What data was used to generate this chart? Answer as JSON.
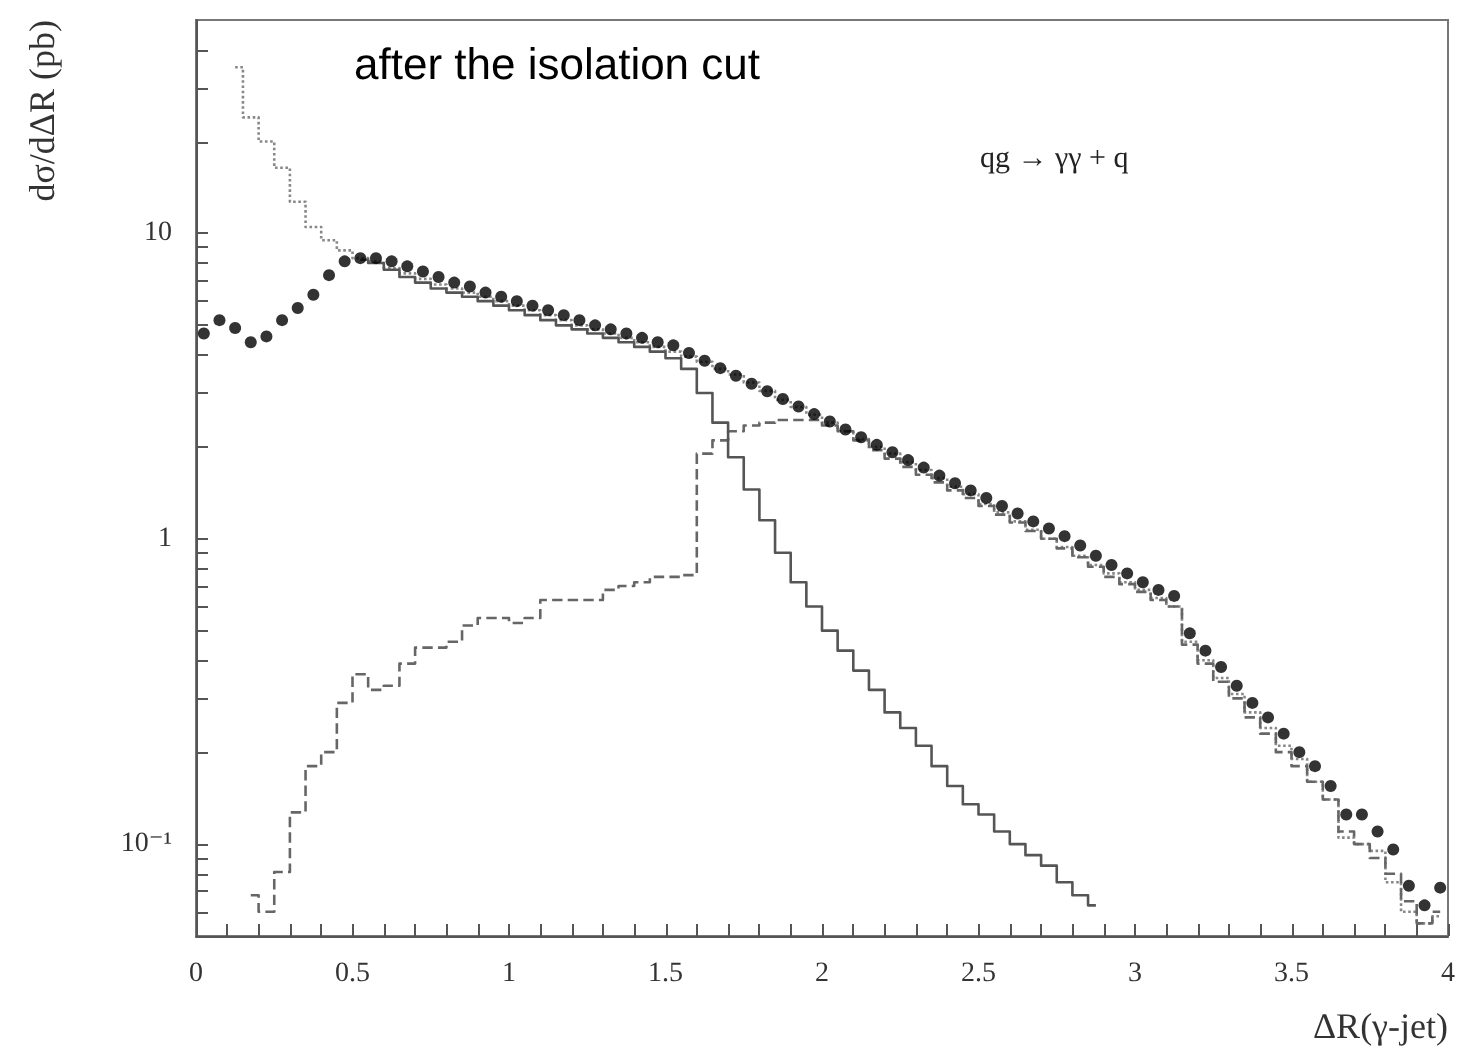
{
  "chart_data": {
    "type": "scatter",
    "title": "after the isolation cut",
    "xlabel": "ΔR(γ-jet)",
    "ylabel": "dσ/dΔR (pb)",
    "annotations": [
      "qg → γγ + q"
    ],
    "log": "y",
    "grid": false,
    "xlim": [
      0,
      4
    ],
    "ylim": [
      0.05,
      50
    ],
    "xticks": [
      0,
      {
        "value": 0.1,
        "label": null
      },
      {
        "value": 0.2,
        "label": null
      },
      {
        "value": 0.3,
        "label": null
      },
      {
        "value": 0.4,
        "label": null
      },
      0.5,
      {
        "value": 0.6,
        "label": null
      },
      {
        "value": 0.7,
        "label": null
      },
      {
        "value": 0.8,
        "label": null
      },
      {
        "value": 0.9,
        "label": null
      },
      1,
      {
        "value": 1.1,
        "label": null
      },
      {
        "value": 1.2,
        "label": null
      },
      {
        "value": 1.3,
        "label": null
      },
      {
        "value": 1.4,
        "label": null
      },
      1.5,
      {
        "value": 1.6,
        "label": null
      },
      {
        "value": 1.7,
        "label": null
      },
      {
        "value": 1.8,
        "label": null
      },
      {
        "value": 1.9,
        "label": null
      },
      2,
      {
        "value": 2.1,
        "label": null
      },
      {
        "value": 2.2,
        "label": null
      },
      {
        "value": 2.3,
        "label": null
      },
      {
        "value": 2.4,
        "label": null
      },
      2.5,
      {
        "value": 2.6,
        "label": null
      },
      {
        "value": 2.7,
        "label": null
      },
      {
        "value": 2.8,
        "label": null
      },
      {
        "value": 2.9,
        "label": null
      },
      3,
      {
        "value": 3.1,
        "label": null
      },
      {
        "value": 3.2,
        "label": null
      },
      {
        "value": 3.3,
        "label": null
      },
      {
        "value": 3.4,
        "label": null
      },
      3.5,
      {
        "value": 3.6,
        "label": null
      },
      {
        "value": 3.7,
        "label": null
      },
      {
        "value": 3.8,
        "label": null
      },
      {
        "value": 3.9,
        "label": null
      },
      4
    ],
    "yticks": [
      {
        "value": 0.06,
        "label": null
      },
      {
        "value": 0.07,
        "label": null
      },
      {
        "value": 0.08,
        "label": null
      },
      {
        "value": 0.09,
        "label": null
      },
      {
        "value": 0.1,
        "label": "10⁻¹"
      },
      {
        "value": 0.2,
        "label": null
      },
      {
        "value": 0.3,
        "label": null
      },
      {
        "value": 0.4,
        "label": null
      },
      {
        "value": 0.5,
        "label": null
      },
      {
        "value": 0.6,
        "label": null
      },
      {
        "value": 0.7,
        "label": null
      },
      {
        "value": 0.8,
        "label": null
      },
      {
        "value": 0.9,
        "label": null
      },
      1,
      {
        "value": 2,
        "label": null
      },
      {
        "value": 3,
        "label": null
      },
      {
        "value": 4,
        "label": null
      },
      {
        "value": 5,
        "label": null
      },
      {
        "value": 6,
        "label": null
      },
      {
        "value": 7,
        "label": null
      },
      {
        "value": 8,
        "label": null
      },
      {
        "value": 9,
        "label": null
      },
      10,
      {
        "value": 20,
        "label": null
      },
      {
        "value": 30,
        "label": null
      },
      {
        "value": 40,
        "label": null
      }
    ],
    "series": [
      {
        "type": "step",
        "color": "#888888",
        "line_style": "dotted",
        "x": [
          0.125,
          0.175,
          0.225,
          0.275,
          0.325,
          0.375,
          0.425,
          0.475,
          0.525,
          0.575,
          0.625,
          0.675,
          0.725,
          0.775,
          0.825,
          0.875,
          0.925,
          0.975,
          1.025,
          1.075,
          1.125,
          1.175,
          1.225,
          1.275,
          1.325,
          1.375,
          1.425,
          1.475,
          1.525,
          1.575,
          1.625,
          1.675,
          1.725,
          1.775,
          1.825,
          1.875,
          1.925,
          1.975,
          2.025,
          2.075,
          2.125,
          2.175,
          2.225,
          2.275,
          2.325,
          2.375,
          2.425,
          2.475,
          2.525,
          2.575,
          2.625,
          2.675,
          2.725,
          2.775,
          2.825,
          2.875,
          2.925,
          2.975,
          3.025,
          3.075,
          3.125,
          3.175,
          3.225,
          3.275,
          3.325,
          3.375,
          3.425,
          3.475,
          3.525,
          3.575,
          3.625,
          3.675,
          3.725,
          3.775,
          3.825,
          3.875,
          3.925,
          3.975
        ],
        "values": [
          35,
          24,
          20,
          16.4,
          12.7,
          10.5,
          9.5,
          8.8,
          8.3,
          8.1,
          7.7,
          7.4,
          7.1,
          6.8,
          6.6,
          6.4,
          6.2,
          6.0,
          5.8,
          5.6,
          5.4,
          5.2,
          5.0,
          4.85,
          4.7,
          4.55,
          4.4,
          4.25,
          4.1,
          3.95,
          3.8,
          3.6,
          3.45,
          3.25,
          3.05,
          2.85,
          2.7,
          2.55,
          2.4,
          2.25,
          2.12,
          2.0,
          1.9,
          1.78,
          1.68,
          1.58,
          1.48,
          1.4,
          1.3,
          1.22,
          1.14,
          1.07,
          1.0,
          0.94,
          0.88,
          0.82,
          0.77,
          0.72,
          0.68,
          0.64,
          0.6,
          0.46,
          0.4,
          0.35,
          0.31,
          0.27,
          0.24,
          0.21,
          0.19,
          0.16,
          0.14,
          0.105,
          0.1,
          0.095,
          0.075,
          0.06,
          0.055,
          0.058
        ]
      },
      {
        "type": "step",
        "color": "#666666",
        "line_style": "dashed",
        "x": [
          0.175,
          0.225,
          0.275,
          0.325,
          0.375,
          0.425,
          0.475,
          0.525,
          0.575,
          0.625,
          0.675,
          0.725,
          0.775,
          0.825,
          0.875,
          0.925,
          0.975,
          1.025,
          1.075,
          1.125,
          1.175,
          1.225,
          1.275,
          1.325,
          1.375,
          1.425,
          1.475,
          1.525,
          1.575,
          1.625,
          1.675,
          1.725,
          1.775,
          1.825,
          1.875,
          1.925,
          1.975,
          2.025,
          2.075,
          2.125,
          2.175,
          2.225,
          2.275,
          2.325,
          2.375,
          2.425,
          2.475,
          2.525,
          2.575,
          2.625,
          2.675,
          2.725,
          2.775,
          2.825,
          2.875,
          2.925,
          2.975,
          3.025,
          3.075,
          3.125,
          3.175,
          3.225,
          3.275,
          3.325,
          3.375,
          3.425,
          3.475,
          3.525,
          3.575,
          3.625,
          3.675,
          3.725,
          3.775,
          3.825,
          3.875,
          3.925,
          3.975
        ],
        "values": [
          0.068,
          0.06,
          0.081,
          0.127,
          0.18,
          0.2,
          0.29,
          0.36,
          0.32,
          0.33,
          0.39,
          0.44,
          0.44,
          0.46,
          0.52,
          0.55,
          0.55,
          0.53,
          0.55,
          0.63,
          0.63,
          0.63,
          0.63,
          0.68,
          0.7,
          0.72,
          0.75,
          0.75,
          0.76,
          1.9,
          2.1,
          2.25,
          2.35,
          2.4,
          2.45,
          2.45,
          2.45,
          2.35,
          2.25,
          2.1,
          1.95,
          1.83,
          1.72,
          1.62,
          1.53,
          1.44,
          1.36,
          1.28,
          1.2,
          1.13,
          1.06,
          1.0,
          0.93,
          0.87,
          0.81,
          0.75,
          0.71,
          0.67,
          0.63,
          0.6,
          0.45,
          0.39,
          0.34,
          0.3,
          0.26,
          0.23,
          0.2,
          0.18,
          0.16,
          0.14,
          0.11,
          0.1,
          0.09,
          0.08,
          0.065,
          0.055,
          0.06
        ]
      },
      {
        "type": "step",
        "color": "#555555",
        "line_style": "solid",
        "x": [
          0.525,
          0.575,
          0.625,
          0.675,
          0.725,
          0.775,
          0.825,
          0.875,
          0.925,
          0.975,
          1.025,
          1.075,
          1.125,
          1.175,
          1.225,
          1.275,
          1.325,
          1.375,
          1.425,
          1.475,
          1.525,
          1.575,
          1.625,
          1.675,
          1.725,
          1.775,
          1.825,
          1.875,
          1.925,
          1.975,
          2.025,
          2.075,
          2.125,
          2.175,
          2.225,
          2.275,
          2.325,
          2.375,
          2.425,
          2.475,
          2.525,
          2.575,
          2.625,
          2.675,
          2.725,
          2.775,
          2.825,
          2.875
        ],
        "values": [
          8.2,
          8.0,
          7.6,
          7.2,
          6.9,
          6.6,
          6.4,
          6.2,
          6.0,
          5.8,
          5.6,
          5.4,
          5.2,
          5.0,
          4.85,
          4.7,
          4.55,
          4.4,
          4.25,
          4.1,
          3.9,
          3.6,
          3.0,
          2.4,
          1.85,
          1.45,
          1.15,
          0.9,
          0.72,
          0.6,
          0.5,
          0.43,
          0.37,
          0.32,
          0.27,
          0.24,
          0.21,
          0.18,
          0.155,
          0.135,
          0.125,
          0.11,
          0.1,
          0.092,
          0.085,
          0.075,
          0.068,
          0.063
        ]
      },
      {
        "color": "#000000",
        "marker": "circle",
        "x": [
          0.025,
          0.075,
          0.125,
          0.175,
          0.225,
          0.275,
          0.325,
          0.375,
          0.425,
          0.475,
          0.525,
          0.575,
          0.625,
          0.675,
          0.725,
          0.775,
          0.825,
          0.875,
          0.925,
          0.975,
          1.025,
          1.075,
          1.125,
          1.175,
          1.225,
          1.275,
          1.325,
          1.375,
          1.425,
          1.475,
          1.525,
          1.575,
          1.625,
          1.675,
          1.725,
          1.775,
          1.825,
          1.875,
          1.925,
          1.975,
          2.025,
          2.075,
          2.125,
          2.175,
          2.225,
          2.275,
          2.325,
          2.375,
          2.425,
          2.475,
          2.525,
          2.575,
          2.625,
          2.675,
          2.725,
          2.775,
          2.825,
          2.875,
          2.925,
          2.975,
          3.025,
          3.075,
          3.125,
          3.175,
          3.225,
          3.275,
          3.325,
          3.375,
          3.425,
          3.475,
          3.525,
          3.575,
          3.625,
          3.675,
          3.725,
          3.775,
          3.825,
          3.875,
          3.925,
          3.975
        ],
        "values": [
          4.7,
          5.2,
          4.9,
          4.4,
          4.6,
          5.2,
          5.7,
          6.3,
          7.3,
          8.1,
          8.3,
          8.3,
          8.1,
          7.8,
          7.5,
          7.2,
          6.9,
          6.7,
          6.4,
          6.2,
          6.0,
          5.8,
          5.6,
          5.4,
          5.2,
          5.0,
          4.85,
          4.7,
          4.55,
          4.4,
          4.3,
          4.06,
          3.83,
          3.62,
          3.42,
          3.22,
          3.04,
          2.87,
          2.71,
          2.56,
          2.42,
          2.28,
          2.15,
          2.03,
          1.92,
          1.81,
          1.71,
          1.61,
          1.52,
          1.44,
          1.36,
          1.28,
          1.21,
          1.14,
          1.08,
          1.02,
          0.95,
          0.88,
          0.82,
          0.77,
          0.72,
          0.68,
          0.65,
          0.49,
          0.43,
          0.38,
          0.33,
          0.29,
          0.26,
          0.23,
          0.2,
          0.18,
          0.155,
          0.125,
          0.125,
          0.11,
          0.096,
          0.073,
          0.063,
          0.072
        ]
      }
    ]
  }
}
